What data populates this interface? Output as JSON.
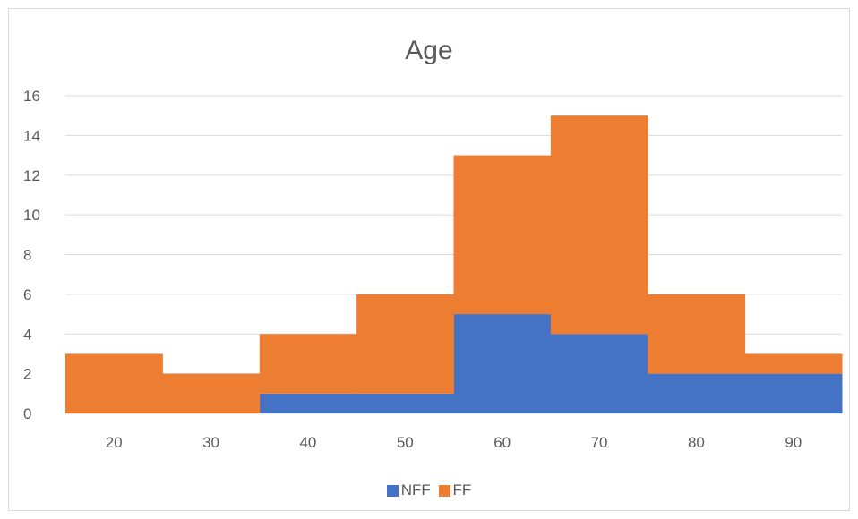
{
  "chart_data": {
    "type": "area",
    "title": "Age",
    "categories": [
      "20",
      "30",
      "40",
      "50",
      "60",
      "70",
      "80",
      "90"
    ],
    "series": [
      {
        "name": "NFF",
        "values": [
          0,
          0,
          1,
          1,
          5,
          4,
          2,
          2
        ],
        "color": "#4472c4"
      },
      {
        "name": "FF",
        "values": [
          3,
          2,
          3,
          5,
          8,
          11,
          4,
          1
        ],
        "color": "#ed7d31"
      }
    ],
    "stacked": true,
    "ylim": [
      0,
      16
    ],
    "yticks": [
      "0",
      "2",
      "4",
      "6",
      "8",
      "10",
      "12",
      "14",
      "16"
    ],
    "grid": true,
    "legend": "bottom"
  }
}
